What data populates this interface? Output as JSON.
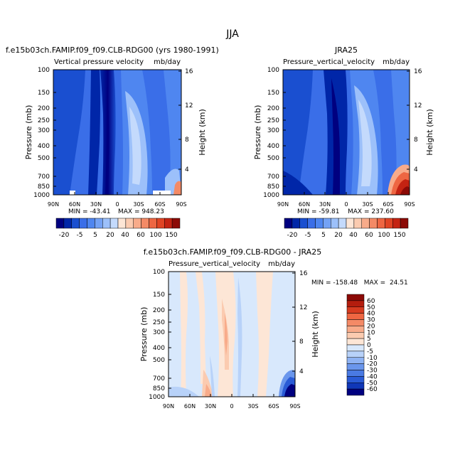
{
  "page": {
    "title": "JJA"
  },
  "chart_data": [
    {
      "type": "heatmap",
      "case_title": "f.e15b03ch.FAMIP.f09_f09.CLB-RDG00 (yrs 1980-1991)",
      "title": "Vertical pressure velocity",
      "units": "mb/day",
      "ylabel": "Pressure (mb)",
      "y2label": "Height (km)",
      "x_ticks": [
        "90N",
        "60N",
        "30N",
        "0",
        "30S",
        "60S",
        "90S"
      ],
      "y_ticks": [
        "100",
        "150",
        "200",
        "250",
        "300",
        "400",
        "500",
        "700",
        "850",
        "1000"
      ],
      "y2_ticks": [
        "16",
        "12",
        "8",
        "4"
      ],
      "x_range": [
        90,
        -90
      ],
      "y_range": [
        100,
        1000
      ],
      "min_label": "MIN = -43.41",
      "max_label": "MAX = 948.23",
      "min": -43.41,
      "max": 948.23,
      "colorbar_labels": [
        "-20",
        "-5",
        "5",
        "20",
        "40",
        "60",
        "100",
        "150"
      ]
    },
    {
      "type": "heatmap",
      "case_title": "JRA25",
      "title": "Pressure_vertical_velocity",
      "units": "mb/day",
      "ylabel": "Pressure (mb)",
      "y2label": "Height (km)",
      "x_ticks": [
        "90N",
        "60N",
        "30N",
        "0",
        "30S",
        "60S",
        "90S"
      ],
      "y_ticks": [
        "100",
        "150",
        "200",
        "250",
        "300",
        "400",
        "500",
        "700",
        "850",
        "1000"
      ],
      "y2_ticks": [
        "16",
        "12",
        "8",
        "4"
      ],
      "x_range": [
        90,
        -90
      ],
      "y_range": [
        100,
        1000
      ],
      "min_label": "MIN = -59.81",
      "max_label": "MAX = 237.60",
      "min": -59.81,
      "max": 237.6,
      "colorbar_labels": [
        "-20",
        "-5",
        "5",
        "20",
        "40",
        "60",
        "100",
        "150"
      ]
    },
    {
      "type": "heatmap",
      "case_title": "f.e15b03ch.FAMIP.f09_f09.CLB-RDG00 - JRA25",
      "title": "Pressure_vertical_velocity",
      "units": "mb/day",
      "ylabel": "Pressure (mb)",
      "y2label": "Height (km)",
      "x_ticks": [
        "90N",
        "60N",
        "30N",
        "0",
        "30S",
        "60S",
        "90S"
      ],
      "y_ticks": [
        "100",
        "150",
        "200",
        "250",
        "300",
        "400",
        "500",
        "700",
        "850",
        "1000"
      ],
      "y2_ticks": [
        "16",
        "12",
        "8",
        "4"
      ],
      "x_range": [
        90,
        -90
      ],
      "y_range": [
        100,
        1000
      ],
      "minmax_label": "MIN = -158.48   MAX =  24.51",
      "min": -158.48,
      "max": 24.51,
      "colorbar_labels": [
        "60",
        "50",
        "40",
        "30",
        "20",
        "10",
        "5",
        "0",
        "-5",
        "-10",
        "-20",
        "-30",
        "-40",
        "-50",
        "-60"
      ]
    }
  ],
  "colors": {
    "scale_top": [
      "#000080",
      "#0026a8",
      "#1a4fd0",
      "#3a6ee8",
      "#4f86f0",
      "#74a2f5",
      "#9cc0fa",
      "#c4dafc",
      "#fde6d6",
      "#fbcbb0",
      "#f8ab8a",
      "#f48a66",
      "#ee6642",
      "#e04424",
      "#c42312",
      "#8c0a06"
    ],
    "scale_diff": [
      "#8c0a06",
      "#b41d0e",
      "#d63b20",
      "#ee6642",
      "#f48a66",
      "#f8ab8a",
      "#fbcbb0",
      "#fde6d6",
      "#d8e8fc",
      "#b8d2f9",
      "#8fb3f3",
      "#6a96ec",
      "#4a7ae3",
      "#2a5bd6",
      "#1037b8",
      "#000080"
    ]
  }
}
